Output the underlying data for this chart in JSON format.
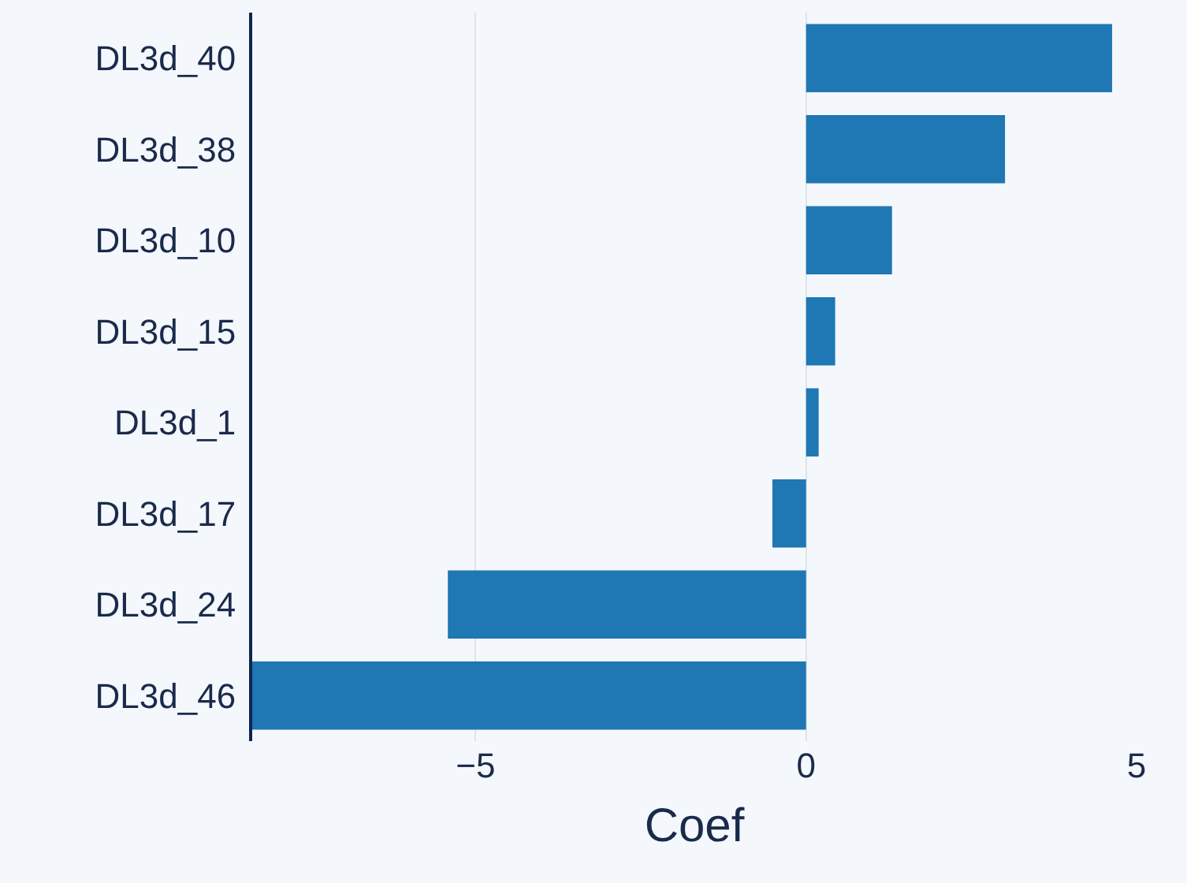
{
  "chart_data": {
    "type": "bar",
    "orientation": "horizontal",
    "xlabel": "Coef",
    "categories": [
      "DL3d_40",
      "DL3d_38",
      "DL3d_10",
      "DL3d_15",
      "DL3d_1",
      "DL3d_17",
      "DL3d_24",
      "DL3d_46"
    ],
    "values": [
      4.63,
      3.01,
      1.3,
      0.44,
      0.19,
      -0.51,
      -5.42,
      -8.38
    ],
    "color": "#1f77b4",
    "xlim": [
      -8.38,
      5
    ],
    "xticks": [
      {
        "value": -5,
        "label": "−5"
      },
      0,
      5
    ],
    "grid": "x",
    "legend": false
  }
}
